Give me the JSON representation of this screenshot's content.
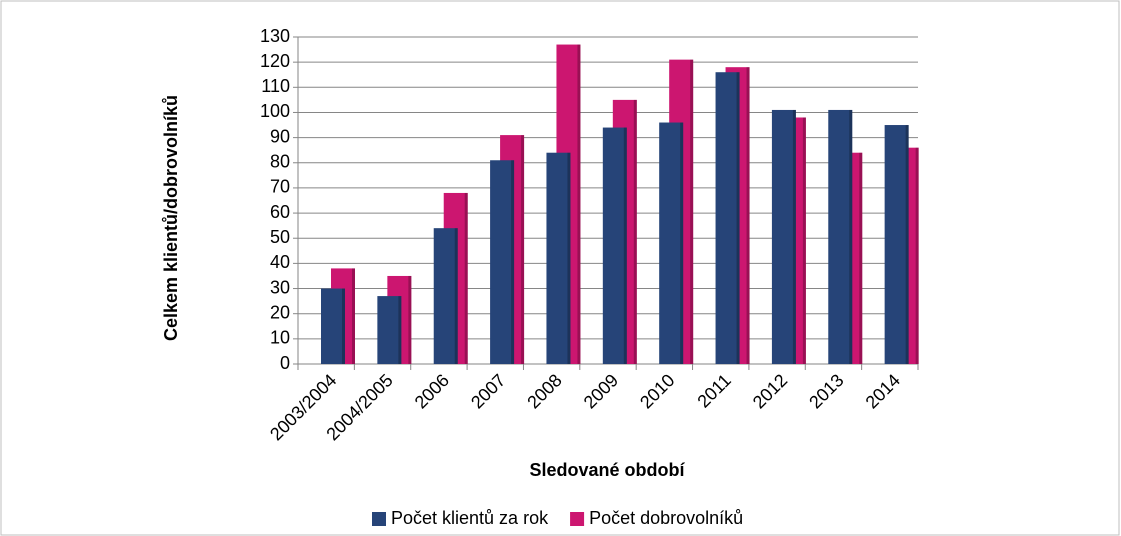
{
  "chart_data": {
    "type": "bar",
    "x_label": "Sledované období",
    "y_label": "Celkem klientů/dobrovolníků",
    "categories": [
      "2003/2004",
      "2004/2005",
      "2006",
      "2007",
      "2008",
      "2009",
      "2010",
      "2011",
      "2012",
      "2013",
      "2014"
    ],
    "series": [
      {
        "name": "Počet klientů za rok",
        "color": "#264478",
        "values": [
          30,
          27,
          54,
          81,
          84,
          94,
          96,
          116,
          101,
          101,
          95
        ]
      },
      {
        "name": "Počet dobrovolníků",
        "color": "#cc1670",
        "values": [
          38,
          35,
          68,
          91,
          127,
          105,
          121,
          118,
          98,
          84,
          86
        ]
      }
    ],
    "ylim": [
      0,
      130
    ],
    "yticks": [
      0,
      10,
      20,
      30,
      40,
      50,
      60,
      70,
      80,
      90,
      100,
      110,
      120,
      130
    ],
    "grid": true,
    "legend": "bottom"
  }
}
